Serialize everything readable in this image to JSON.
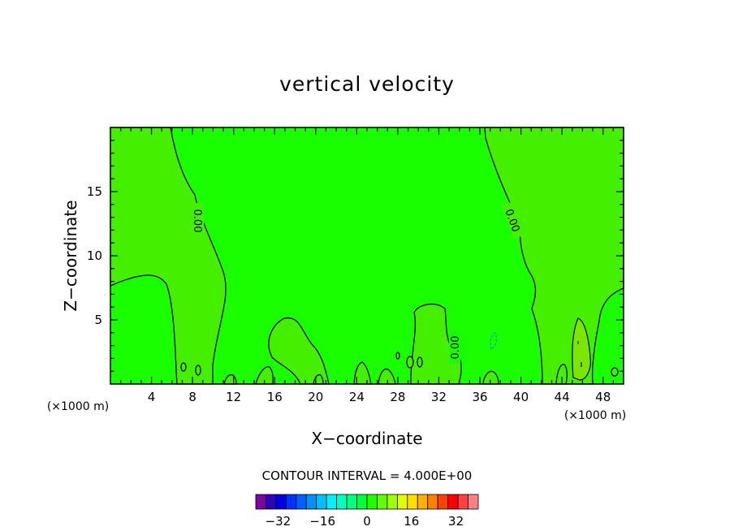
{
  "chart_data": {
    "type": "contour",
    "title": "vertical velocity",
    "xlabel": "X−coordinate",
    "ylabel": "Z−coordinate",
    "x_unit": "(×1000 m)",
    "y_unit": "(×1000 m)",
    "xlim": [
      0,
      50
    ],
    "ylim": [
      0,
      20
    ],
    "x_ticks": [
      4,
      8,
      12,
      16,
      20,
      24,
      28,
      32,
      36,
      40,
      44,
      48
    ],
    "y_ticks": [
      5,
      10,
      15
    ],
    "contour_labels": [
      {
        "text": "0.00",
        "x": 8.4,
        "z": 12.8
      },
      {
        "text": "0.00",
        "x": 39.4,
        "z": 12.8
      },
      {
        "text": "0.00",
        "x": 33.4,
        "z": 2.8
      }
    ],
    "contour_interval_text": "CONTOUR INTERVAL = 4.000E+00",
    "colorbar": {
      "min": -40,
      "max": 40,
      "step": 4,
      "tick_labels": [
        "−32",
        "−16",
        "0",
        "16",
        "32"
      ],
      "tick_values": [
        -32,
        -16,
        0,
        16,
        32
      ],
      "colors": [
        "#8000a0",
        "#3000c0",
        "#0000e0",
        "#0030ff",
        "#0060ff",
        "#0090ff",
        "#00c0ff",
        "#00f0ff",
        "#00ffc0",
        "#00ff80",
        "#00ff40",
        "#20ff00",
        "#60ff00",
        "#a0ff00",
        "#e0ff00",
        "#ffe000",
        "#ffb000",
        "#ff8000",
        "#ff4000",
        "#ff0000",
        "#ff4040",
        "#ff8080"
      ]
    },
    "background_color": "#1aff00",
    "positive_region_color": "#44ef00"
  }
}
